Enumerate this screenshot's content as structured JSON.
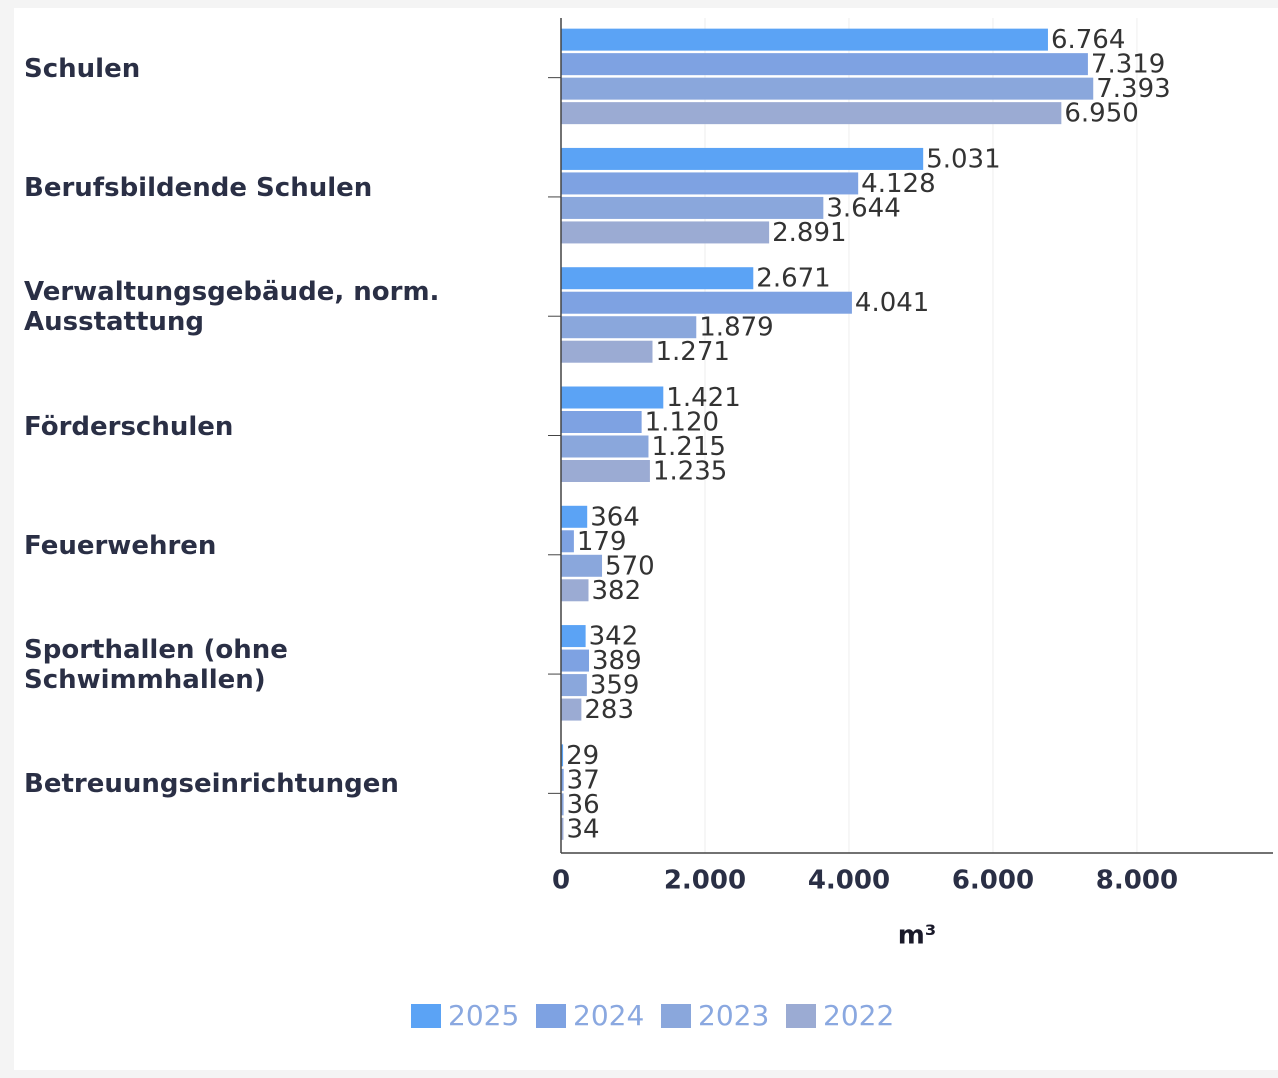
{
  "chart_data": {
    "type": "hbar",
    "categories": [
      "Schulen",
      "Berufsbildende Schulen",
      "Verwaltungsgebäude, norm. Ausstattung",
      "Förderschulen",
      "Feuerwehren",
      "Sporthallen (ohne Schwimmhallen)",
      "Betreuungseinrichtungen"
    ],
    "series": [
      {
        "name": "2025",
        "color": "#5ba3f5",
        "values": [
          6764,
          5031,
          2671,
          1421,
          364,
          342,
          29
        ],
        "value_labels": [
          "6.764",
          "5.031",
          "2.671",
          "1.421",
          "364",
          "342",
          "29"
        ]
      },
      {
        "name": "2024",
        "color": "#7ea2e2",
        "values": [
          7319,
          4128,
          4041,
          1120,
          179,
          389,
          37
        ],
        "value_labels": [
          "7.319",
          "4.128",
          "4.041",
          "1.120",
          "179",
          "389",
          "37"
        ]
      },
      {
        "name": "2023",
        "color": "#8aa7dc",
        "values": [
          7393,
          3644,
          1879,
          1215,
          570,
          359,
          36
        ],
        "value_labels": [
          "7.393",
          "3.644",
          "1.879",
          "1.215",
          "570",
          "359",
          "36"
        ]
      },
      {
        "name": "2022",
        "color": "#9babd3",
        "values": [
          6950,
          2891,
          1271,
          1235,
          382,
          283,
          34
        ],
        "value_labels": [
          "6.950",
          "2.891",
          "1.271",
          "1.235",
          "382",
          "283",
          "34"
        ]
      }
    ],
    "xlabel": "m³",
    "xlim": [
      0,
      9890
    ],
    "xticks": [
      0,
      {
        "value": 2000,
        "label": "2.000"
      },
      {
        "value": 4000,
        "label": "4.000"
      },
      {
        "value": 6000,
        "label": "6.000"
      },
      {
        "value": 8000,
        "label": "8.000"
      }
    ],
    "grid": true,
    "legend": "bottom"
  }
}
